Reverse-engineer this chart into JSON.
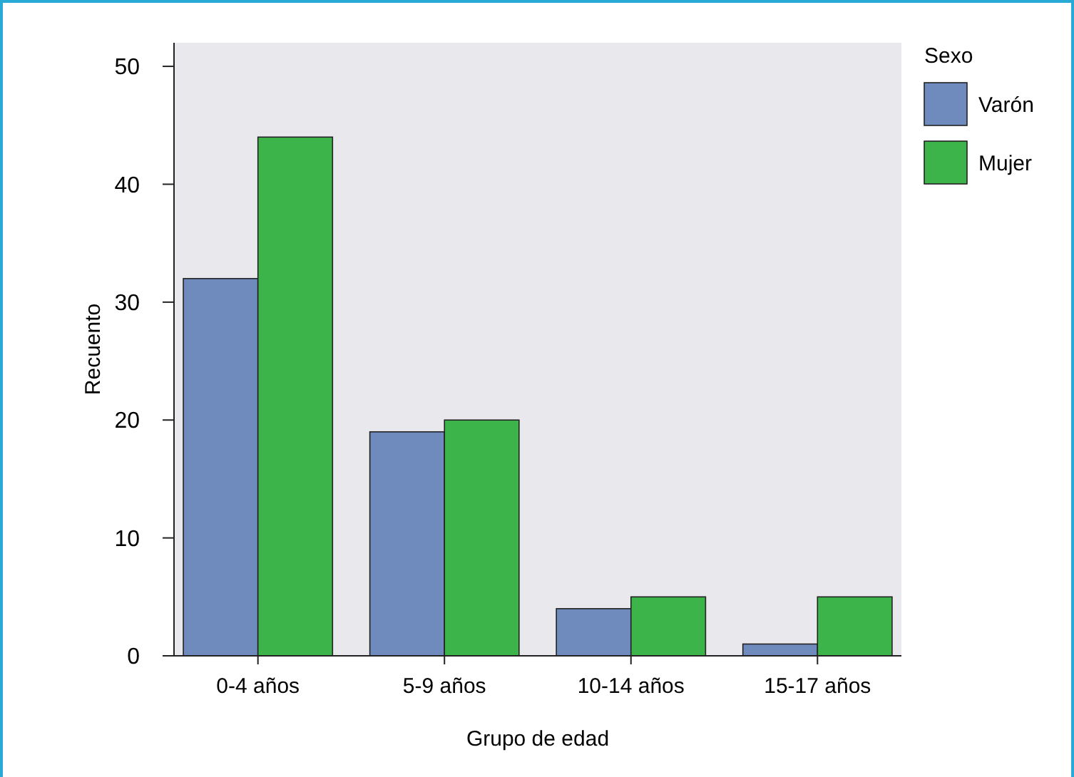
{
  "chart_data": {
    "type": "bar",
    "xlabel": "Grupo de edad",
    "ylabel": "Recuento",
    "legend_title": "Sexo",
    "categories": [
      "0-4 años",
      "5-9 años",
      "10-14 años",
      "15-17 años"
    ],
    "series": [
      {
        "name": "Varón",
        "color": "#6f8abd",
        "values": [
          32,
          19,
          4,
          1
        ]
      },
      {
        "name": "Mujer",
        "color": "#3cb44a",
        "values": [
          44,
          20,
          5,
          5
        ]
      }
    ],
    "ylim": [
      0,
      52
    ],
    "yticks": [
      0,
      10,
      20,
      30,
      40,
      50
    ],
    "grid": false,
    "legend": "top right"
  }
}
